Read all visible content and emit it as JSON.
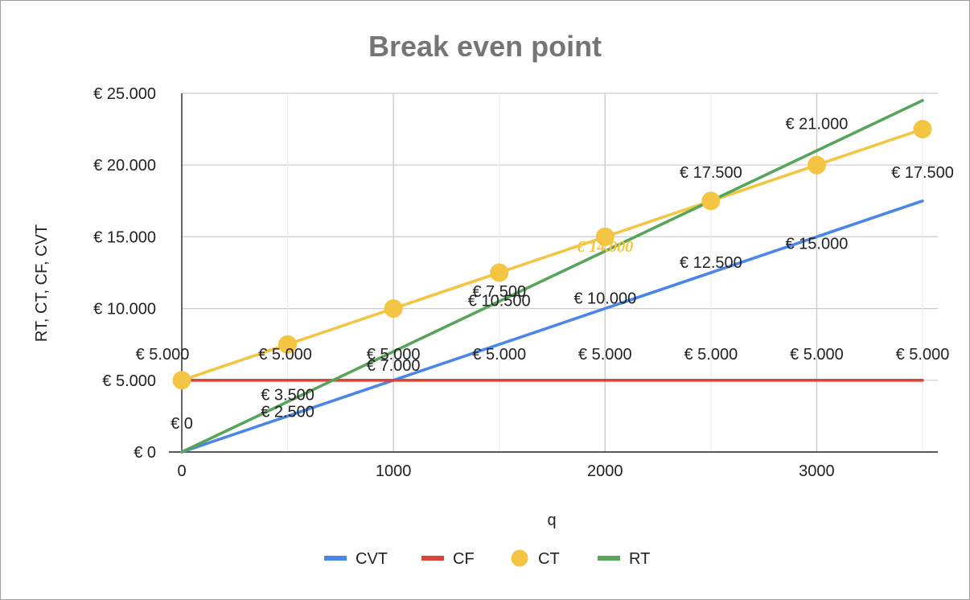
{
  "chart_data": {
    "type": "line",
    "title": "Break even point",
    "xlabel": "q",
    "ylabel": "RT, CT, CF, CVT",
    "x": [
      0,
      500,
      1000,
      1500,
      2000,
      2500,
      3000,
      3500
    ],
    "xlim": [
      0,
      3500
    ],
    "ylim": [
      0,
      25000
    ],
    "x_ticks": [
      {
        "value": 0,
        "label": "0"
      },
      {
        "value": 1000,
        "label": "1000"
      },
      {
        "value": 2000,
        "label": "2000"
      },
      {
        "value": 3000,
        "label": "3000"
      }
    ],
    "y_ticks": [
      {
        "value": 0,
        "label": "€ 0"
      },
      {
        "value": 5000,
        "label": "€ 5.000"
      },
      {
        "value": 10000,
        "label": "€ 10.000"
      },
      {
        "value": 15000,
        "label": "€ 15.000"
      },
      {
        "value": 20000,
        "label": "€ 20.000"
      },
      {
        "value": 25000,
        "label": "€ 25.000"
      }
    ],
    "grid": true,
    "legend_position": "bottom",
    "series": [
      {
        "name": "CVT",
        "color": "#4a86e8",
        "marker": "none",
        "values": [
          0,
          2500,
          5000,
          7500,
          10000,
          12500,
          15000,
          17500
        ]
      },
      {
        "name": "CF",
        "color": "#db4437",
        "marker": "none",
        "values": [
          5000,
          5000,
          5000,
          5000,
          5000,
          5000,
          5000,
          5000
        ]
      },
      {
        "name": "CT",
        "color": "#f4c542",
        "marker": "circle",
        "values": [
          5000,
          7500,
          10000,
          12500,
          15000,
          17500,
          20000,
          22500
        ]
      },
      {
        "name": "RT",
        "color": "#57a55a",
        "marker": "none",
        "values": [
          0,
          3500,
          7000,
          10500,
          14000,
          17500,
          21000,
          24500
        ]
      }
    ],
    "data_labels": [
      {
        "series": "CF",
        "x": 0,
        "text": "€ 5.000"
      },
      {
        "series": "CF",
        "x": 500,
        "text": "€ 5.000"
      },
      {
        "series": "CF",
        "x": 1000,
        "text": "€ 5.000"
      },
      {
        "series": "CF",
        "x": 1500,
        "text": "€ 5.000"
      },
      {
        "series": "CF",
        "x": 2000,
        "text": "€ 5.000"
      },
      {
        "series": "CF",
        "x": 2500,
        "text": "€ 5.000"
      },
      {
        "series": "CF",
        "x": 3000,
        "text": "€ 5.000"
      },
      {
        "series": "CF",
        "x": 3500,
        "text": "€ 5.000"
      },
      {
        "series": "RT",
        "x": 0,
        "text": "€ 0"
      },
      {
        "series": "RT",
        "x": 500,
        "text": "€ 3.500"
      },
      {
        "series": "CVT",
        "x": 500,
        "text": "€ 2.500"
      },
      {
        "series": "RT",
        "x": 1000,
        "text": "€ 7.000"
      },
      {
        "series": "CVT",
        "x": 1500,
        "text": "€ 7.500"
      },
      {
        "series": "RT",
        "x": 1500,
        "text": "€ 10.500"
      },
      {
        "series": "CVT",
        "x": 2000,
        "text": "€ 10.000"
      },
      {
        "series": "RT",
        "x": 2000,
        "text": "€ 14.000"
      },
      {
        "series": "CVT",
        "x": 2500,
        "text": "€ 12.500"
      },
      {
        "series": "RT",
        "x": 2500,
        "text": "€ 17.500"
      },
      {
        "series": "CVT",
        "x": 3000,
        "text": "€ 15.000"
      },
      {
        "series": "RT",
        "x": 3000,
        "text": "€ 21.000"
      },
      {
        "series": "CVT",
        "x": 3500,
        "text": "€ 17.500"
      }
    ]
  }
}
